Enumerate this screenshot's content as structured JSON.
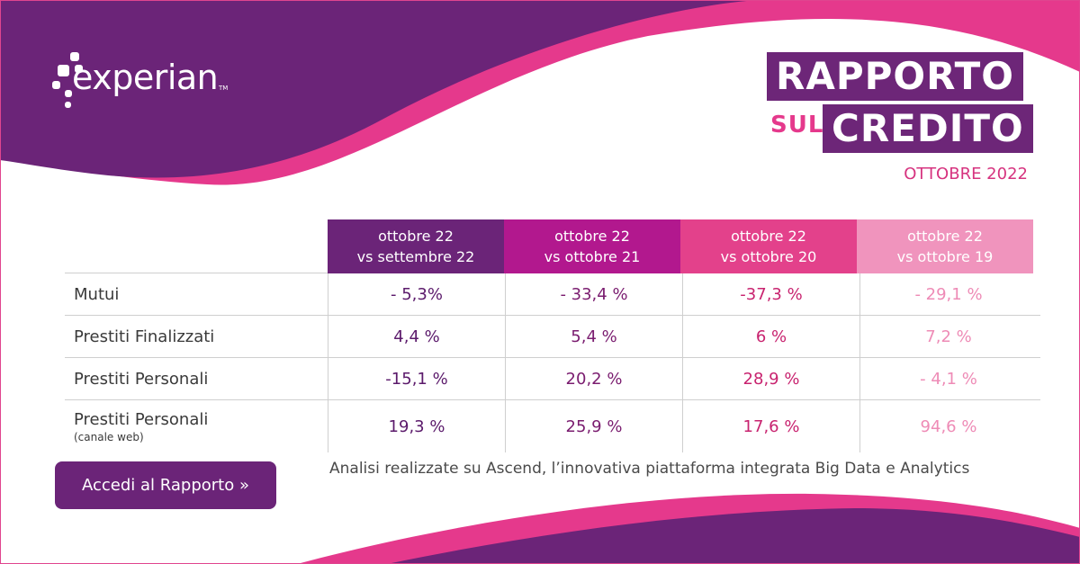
{
  "logo": {
    "wordmark": "experian",
    "tm": "TM"
  },
  "title": {
    "line1": "RAPPORTO",
    "sul": "SUL",
    "line2": "CREDITO",
    "date": "OTTOBRE 2022"
  },
  "colors": {
    "purple": "#6b2478",
    "magenta": "#b2188e",
    "pink": "#e3418b",
    "light_pink": "#f094bd"
  },
  "table": {
    "headers": [
      {
        "line1": "ottobre 22",
        "line2": "vs settembre 22"
      },
      {
        "line1": "ottobre 22",
        "line2": "vs ottobre 21"
      },
      {
        "line1": "ottobre 22",
        "line2": "vs ottobre 20"
      },
      {
        "line1": "ottobre 22",
        "line2": "vs ottobre 19"
      }
    ],
    "rows": [
      {
        "label": "Mutui",
        "sublabel": "",
        "values": [
          "- 5,3%",
          "- 33,4 %",
          "-37,3 %",
          "- 29,1 %"
        ]
      },
      {
        "label": "Prestiti Finalizzati",
        "sublabel": "",
        "values": [
          "4,4 %",
          "5,4 %",
          "6 %",
          "7,2 %"
        ]
      },
      {
        "label": "Prestiti Personali",
        "sublabel": "",
        "values": [
          "-15,1 %",
          "20,2 %",
          "28,9 %",
          "- 4,1 %"
        ]
      },
      {
        "label": "Prestiti Personali",
        "sublabel": "(canale web)",
        "values": [
          "19,3 %",
          "25,9  %",
          "17,6 %",
          "94,6  %"
        ]
      }
    ]
  },
  "cta": {
    "label": "Accedi al Rapporto »"
  },
  "note": "Analisi realizzate su Ascend, l’innovativa piattaforma integrata Big Data e Analytics"
}
